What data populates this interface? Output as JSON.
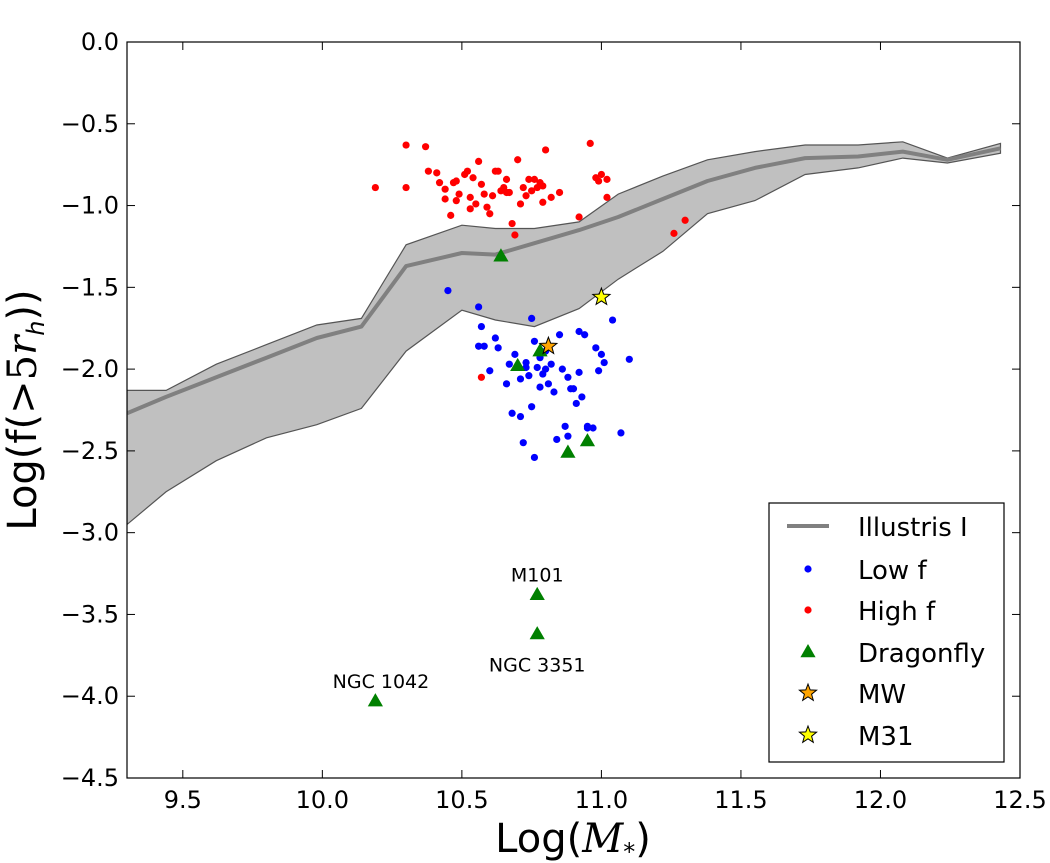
{
  "chart_data": {
    "type": "scatter",
    "xlabel": "Log(M*)",
    "xlabel_parts": {
      "prefix": "Log(",
      "var": "M",
      "sub": "*",
      "suffix": ")"
    },
    "ylabel": "Log(f(>5rh))",
    "ylabel_parts": {
      "prefix": "Log(f(>",
      "num": "5",
      "var": "r",
      "sub": "h",
      "suffix": "))"
    },
    "xlim": [
      9.3,
      12.5
    ],
    "ylim": [
      -4.5,
      0.0
    ],
    "xticks": [
      9.5,
      10.0,
      10.5,
      11.0,
      11.5,
      12.0,
      12.5
    ],
    "xtick_labels": [
      "9.5",
      "10.0",
      "10.5",
      "11.0",
      "11.5",
      "12.0",
      "12.5"
    ],
    "yticks": [
      0.0,
      -0.5,
      -1.0,
      -1.5,
      -2.0,
      -2.5,
      -3.0,
      -3.5,
      -4.0,
      -4.5
    ],
    "ytick_labels": [
      "0.0",
      "−0.5",
      "−1.0",
      "−1.5",
      "−2.0",
      "−2.5",
      "−3.0",
      "−3.5",
      "−4.0",
      "−4.5"
    ],
    "legend_position": "lower-right",
    "colors": {
      "illustris_line": "#808080",
      "band_fill": "#c0c0c0",
      "band_edge": "#555555",
      "low_f": "#0000ff",
      "high_f": "#ff0000",
      "dragonfly": "#008000",
      "mw": "#ffa500",
      "m31": "#ffff00"
    },
    "band": {
      "x": [
        9.3,
        9.44,
        9.62,
        9.8,
        9.98,
        10.14,
        10.3,
        10.5,
        10.62,
        10.76,
        10.92,
        11.06,
        11.22,
        11.38,
        11.55,
        11.73,
        11.92,
        12.08,
        12.24,
        12.43
      ],
      "upper": [
        -2.13,
        -2.13,
        -1.97,
        -1.85,
        -1.73,
        -1.69,
        -1.24,
        -1.12,
        -1.14,
        -1.14,
        -1.1,
        -0.93,
        -0.82,
        -0.72,
        -0.67,
        -0.63,
        -0.63,
        -0.61,
        -0.71,
        -0.62
      ],
      "lower": [
        -2.95,
        -2.75,
        -2.56,
        -2.42,
        -2.34,
        -2.24,
        -1.89,
        -1.64,
        -1.7,
        -1.74,
        -1.63,
        -1.45,
        -1.28,
        -1.05,
        -0.97,
        -0.81,
        -0.77,
        -0.71,
        -0.74,
        -0.68
      ]
    },
    "series": [
      {
        "name": "Illustris I",
        "kind": "line",
        "x": [
          9.3,
          9.44,
          9.62,
          9.8,
          9.98,
          10.14,
          10.3,
          10.5,
          10.62,
          10.76,
          10.92,
          11.06,
          11.22,
          11.38,
          11.55,
          11.73,
          11.92,
          12.08,
          12.24,
          12.43
        ],
        "y": [
          -2.27,
          -2.17,
          -2.05,
          -1.93,
          -1.81,
          -1.74,
          -1.37,
          -1.29,
          -1.3,
          -1.23,
          -1.15,
          -1.07,
          -0.96,
          -0.85,
          -0.77,
          -0.71,
          -0.7,
          -0.67,
          -0.72,
          -0.65
        ]
      },
      {
        "name": "Low f",
        "kind": "points",
        "x": [
          10.45,
          10.56,
          10.57,
          10.56,
          10.58,
          10.62,
          10.63,
          10.6,
          10.66,
          10.68,
          10.72,
          10.75,
          10.76,
          10.78,
          10.8,
          10.82,
          10.85,
          10.88,
          10.9,
          10.92,
          10.94,
          10.98,
          11.0,
          11.01,
          11.04,
          11.1,
          10.67,
          10.69,
          10.71,
          10.73,
          10.74,
          10.77,
          10.79,
          10.81,
          10.83,
          10.75,
          10.78,
          10.86,
          10.89,
          10.91,
          10.93,
          10.95,
          10.97,
          10.99,
          10.71,
          10.76,
          10.84,
          10.88,
          10.95,
          11.07,
          10.73,
          10.8,
          10.92,
          10.87
        ],
        "y": [
          -1.52,
          -1.62,
          -1.74,
          -1.86,
          -1.86,
          -1.81,
          -1.87,
          -2.01,
          -2.09,
          -2.27,
          -2.45,
          -1.69,
          -1.83,
          -1.93,
          -1.89,
          -1.97,
          -1.79,
          -2.05,
          -2.12,
          -1.77,
          -1.79,
          -1.87,
          -1.91,
          -1.96,
          -1.7,
          -1.94,
          -1.97,
          -1.91,
          -2.06,
          -1.96,
          -2.04,
          -1.99,
          -2.03,
          -2.09,
          -2.14,
          -2.23,
          -2.11,
          -2.0,
          -2.12,
          -2.21,
          -2.17,
          -2.35,
          -2.36,
          -2.01,
          -2.29,
          -2.54,
          -2.43,
          -2.41,
          -2.36,
          -2.39,
          -1.99,
          -2.0,
          -2.02,
          -2.35
        ]
      },
      {
        "name": "High f",
        "kind": "points",
        "x": [
          10.19,
          10.3,
          10.3,
          10.37,
          10.38,
          10.41,
          10.42,
          10.44,
          10.44,
          10.46,
          10.47,
          10.48,
          10.49,
          10.51,
          10.52,
          10.53,
          10.54,
          10.55,
          10.56,
          10.57,
          10.58,
          10.59,
          10.6,
          10.62,
          10.63,
          10.64,
          10.65,
          10.66,
          10.67,
          10.68,
          10.69,
          10.7,
          10.71,
          10.72,
          10.73,
          10.74,
          10.75,
          10.76,
          10.77,
          10.78,
          10.79,
          10.8,
          10.82,
          10.85,
          10.92,
          10.96,
          10.98,
          10.99,
          11.0,
          11.02,
          11.02,
          11.26,
          11.3,
          10.57,
          10.48,
          10.53,
          10.61,
          10.66,
          10.79
        ],
        "y": [
          -0.89,
          -0.63,
          -0.89,
          -0.64,
          -0.79,
          -0.8,
          -0.86,
          -0.96,
          -0.9,
          -1.06,
          -0.86,
          -0.97,
          -0.93,
          -0.81,
          -0.79,
          -1.02,
          -0.83,
          -0.99,
          -0.73,
          -0.87,
          -0.93,
          -1.01,
          -1.05,
          -0.79,
          -0.79,
          -0.91,
          -0.89,
          -0.92,
          -0.92,
          -1.11,
          -1.18,
          -0.72,
          -0.99,
          -0.89,
          -0.94,
          -0.84,
          -0.91,
          -0.84,
          -0.89,
          -0.86,
          -0.88,
          -0.66,
          -0.95,
          -0.92,
          -1.07,
          -0.62,
          -0.83,
          -0.85,
          -0.81,
          -0.84,
          -0.95,
          -1.17,
          -1.09,
          -2.05,
          -0.85,
          -0.95,
          -0.94,
          -0.84,
          -0.98
        ]
      },
      {
        "name": "Dragonfly",
        "kind": "triangles",
        "x": [
          10.64,
          10.7,
          10.78,
          10.88,
          10.95,
          10.77,
          10.77,
          10.19
        ],
        "y": [
          -1.31,
          -1.98,
          -1.89,
          -2.51,
          -2.44,
          -3.38,
          -3.62,
          -4.03
        ]
      },
      {
        "name": "MW",
        "kind": "star",
        "x": [
          10.81
        ],
        "y": [
          -1.86
        ]
      },
      {
        "name": "M31",
        "kind": "star",
        "x": [
          11.0
        ],
        "y": [
          -1.56
        ]
      }
    ],
    "annotations": [
      {
        "text": "M101",
        "x": 10.77,
        "y": -3.3
      },
      {
        "text": "NGC 3351",
        "x": 10.77,
        "y": -3.85
      },
      {
        "text": "NGC 1042",
        "x": 10.21,
        "y": -3.95
      }
    ],
    "legend": [
      "Illustris I",
      "Low f",
      "High f",
      "Dragonfly",
      "MW",
      "M31"
    ]
  }
}
